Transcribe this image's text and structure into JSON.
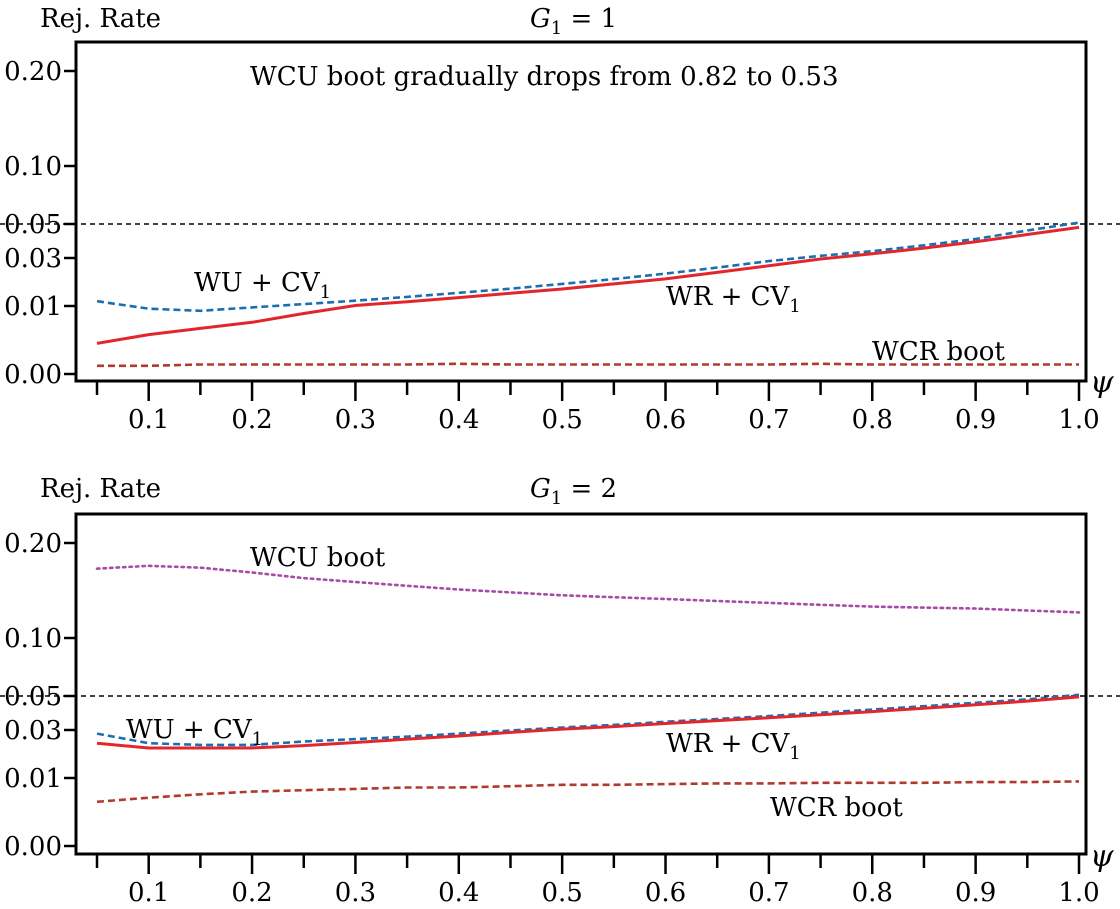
{
  "chart_data": [
    {
      "type": "line",
      "title": "G1 = 1",
      "title_main": "G",
      "title_sub": "1",
      "title_rest": " = 1",
      "ylabel": "Rej. Rate",
      "xlabel": "ψ",
      "xlim": [
        0.05,
        1.0
      ],
      "ylim": [
        0.0,
        0.25
      ],
      "y_scale": "nonlinear (ticks at 0.00, 0.01, 0.03, 0.05, 0.10, 0.20)",
      "x_ticks": [
        "0.1",
        "0.2",
        "0.3",
        "0.4",
        "0.5",
        "0.6",
        "0.7",
        "0.8",
        "0.9",
        "1.0"
      ],
      "y_ticks": [
        "0.00",
        "0.01",
        "0.03",
        "0.05",
        "0.10",
        "0.20"
      ],
      "reference_line": 0.05,
      "annotations": {
        "top_note": "WCU boot gradually drops from 0.82 to 0.53",
        "wu": {
          "main": "WU + CV",
          "sub": "1"
        },
        "wr": {
          "main": "WR + CV",
          "sub": "1"
        },
        "wcr": {
          "main": "WCR boot"
        }
      },
      "x": [
        0.05,
        0.1,
        0.15,
        0.2,
        0.25,
        0.3,
        0.35,
        0.4,
        0.45,
        0.5,
        0.55,
        0.6,
        0.65,
        0.7,
        0.75,
        0.8,
        0.85,
        0.9,
        0.95,
        1.0
      ],
      "series": [
        {
          "name": "WU + CV1",
          "color": "#1a6fb0",
          "style": "dashed",
          "values": [
            0.012,
            0.0096,
            0.0093,
            0.0098,
            0.0108,
            0.0122,
            0.0138,
            0.0155,
            0.0172,
            0.0192,
            0.0212,
            0.0235,
            0.026,
            0.0287,
            0.0313,
            0.034,
            0.0375,
            0.0412,
            0.0462,
            0.0512
          ]
        },
        {
          "name": "WR + CV1",
          "color": "#e3262c",
          "style": "solid",
          "values": [
            0.0045,
            0.0058,
            0.0067,
            0.0076,
            0.0089,
            0.0102,
            0.0118,
            0.0135,
            0.0153,
            0.0171,
            0.0192,
            0.0213,
            0.024,
            0.0268,
            0.0296,
            0.0325,
            0.0358,
            0.0395,
            0.0438,
            0.048
          ]
        },
        {
          "name": "WCR boot",
          "color": "#b03a2e",
          "style": "dashed",
          "values": [
            0.0012,
            0.0012,
            0.0014,
            0.0014,
            0.0014,
            0.0014,
            0.0014,
            0.0015,
            0.0014,
            0.0014,
            0.0014,
            0.0014,
            0.0014,
            0.0014,
            0.0015,
            0.0014,
            0.0014,
            0.0014,
            0.0014,
            0.0014
          ]
        }
      ]
    },
    {
      "type": "line",
      "title": "G1 = 2",
      "title_main": "G",
      "title_sub": "1",
      "title_rest": " = 2",
      "ylabel": "Rej. Rate",
      "xlabel": "ψ",
      "xlim": [
        0.05,
        1.0
      ],
      "ylim": [
        0.0,
        0.25
      ],
      "y_scale": "nonlinear (ticks at 0.00, 0.01, 0.03, 0.05, 0.10, 0.20)",
      "x_ticks": [
        "0.1",
        "0.2",
        "0.3",
        "0.4",
        "0.5",
        "0.6",
        "0.7",
        "0.8",
        "0.9",
        "1.0"
      ],
      "y_ticks": [
        "0.00",
        "0.01",
        "0.03",
        "0.05",
        "0.10",
        "0.20"
      ],
      "reference_line": 0.05,
      "annotations": {
        "wcu": {
          "main": "WCU boot"
        },
        "wu": {
          "main": "WU + CV",
          "sub": "1"
        },
        "wr": {
          "main": "WR + CV",
          "sub": "1"
        },
        "wcr": {
          "main": "WCR boot"
        }
      },
      "x": [
        0.05,
        0.1,
        0.15,
        0.2,
        0.25,
        0.3,
        0.35,
        0.4,
        0.45,
        0.5,
        0.55,
        0.6,
        0.65,
        0.7,
        0.75,
        0.8,
        0.85,
        0.9,
        0.95,
        1.0
      ],
      "series": [
        {
          "name": "WCU boot",
          "color": "#a64ca6",
          "style": "dotted",
          "values": [
            0.173,
            0.176,
            0.174,
            0.169,
            0.163,
            0.159,
            0.155,
            0.151,
            0.148,
            0.145,
            0.143,
            0.141,
            0.139,
            0.137,
            0.135,
            0.133,
            0.132,
            0.131,
            0.129,
            0.127
          ]
        },
        {
          "name": "WU + CV1",
          "color": "#1a6fb0",
          "style": "dashed",
          "values": [
            0.0285,
            0.0245,
            0.0238,
            0.0238,
            0.0252,
            0.0262,
            0.0272,
            0.0285,
            0.0298,
            0.0315,
            0.033,
            0.0348,
            0.0365,
            0.0382,
            0.0402,
            0.042,
            0.044,
            0.046,
            0.048,
            0.051
          ]
        },
        {
          "name": "WR + CV1",
          "color": "#e3262c",
          "style": "solid",
          "values": [
            0.0245,
            0.0225,
            0.0225,
            0.0225,
            0.0235,
            0.0248,
            0.0262,
            0.0275,
            0.029,
            0.0305,
            0.032,
            0.0338,
            0.0355,
            0.0372,
            0.039,
            0.0408,
            0.0428,
            0.0448,
            0.047,
            0.0495
          ]
        },
        {
          "name": "WCR boot",
          "color": "#b03a2e",
          "style": "dashed",
          "values": [
            0.0065,
            0.0071,
            0.0076,
            0.008,
            0.0082,
            0.0084,
            0.0086,
            0.0086,
            0.0088,
            0.009,
            0.009,
            0.0091,
            0.0092,
            0.0092,
            0.0093,
            0.0093,
            0.0093,
            0.0094,
            0.0094,
            0.0095
          ]
        }
      ]
    }
  ]
}
